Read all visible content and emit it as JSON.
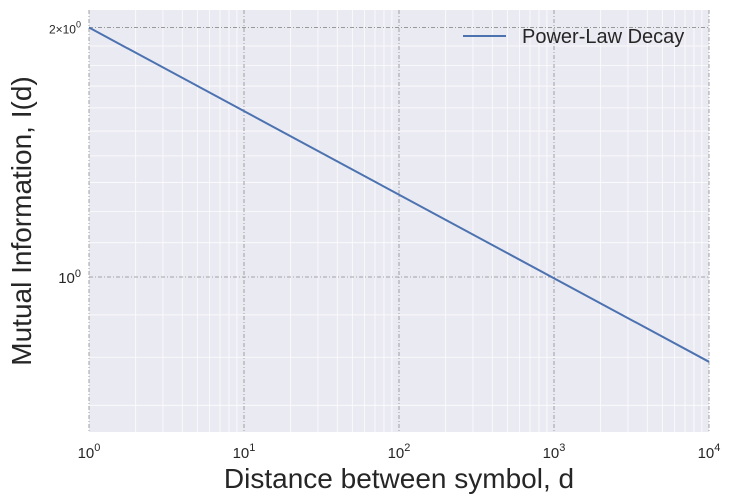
{
  "chart_data": {
    "type": "line",
    "title": "",
    "xlabel": "Distance between symbol, d",
    "ylabel": "Mutual Information, I(d)",
    "xscale": "log",
    "yscale": "log",
    "xlim": [
      1,
      10000
    ],
    "ylim": [
      0.65,
      2.1
    ],
    "grid": true,
    "legend_position": "top-right",
    "x_ticks": [
      {
        "value": 1,
        "base": "10",
        "exp": "0"
      },
      {
        "value": 10,
        "base": "10",
        "exp": "1"
      },
      {
        "value": 100,
        "base": "10",
        "exp": "2"
      },
      {
        "value": 1000,
        "base": "10",
        "exp": "3"
      },
      {
        "value": 10000,
        "base": "10",
        "exp": "4"
      }
    ],
    "y_ticks": [
      {
        "value": 1,
        "prefix": "",
        "base": "10",
        "exp": "0",
        "small": false
      },
      {
        "value": 2,
        "prefix": "2×",
        "base": "10",
        "exp": "0",
        "small": true
      }
    ],
    "series": [
      {
        "name": "Power-Law Decay",
        "color": "#4c72b0",
        "x": [
          1,
          10000
        ],
        "y": [
          2.0,
          0.79
        ]
      }
    ]
  }
}
